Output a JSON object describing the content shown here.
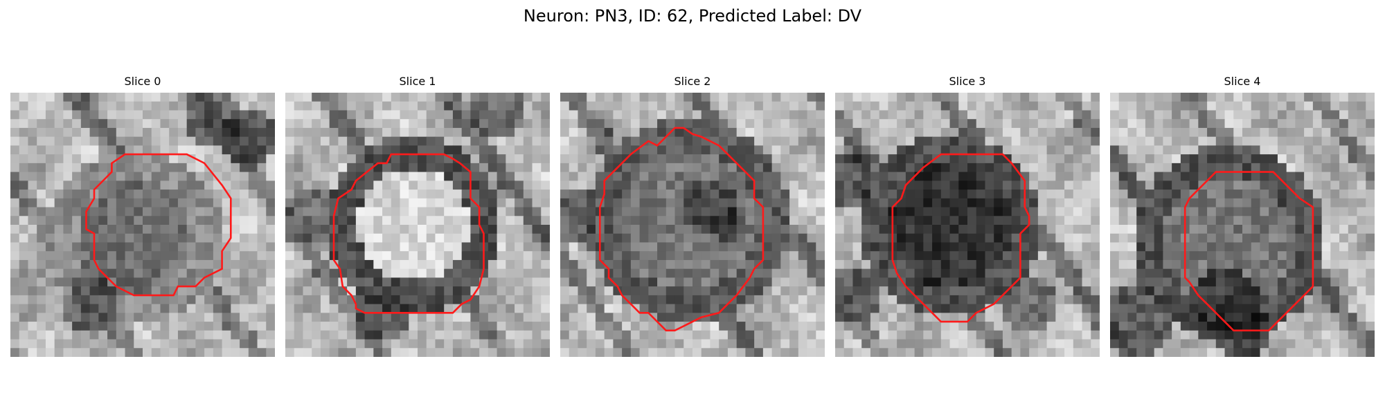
{
  "figure": {
    "title": "Neuron: PN3, ID: 62, Predicted Label: DV"
  },
  "slices": [
    {
      "title": "Slice 0"
    },
    {
      "title": "Slice 1"
    },
    {
      "title": "Slice 2"
    },
    {
      "title": "Slice 3"
    },
    {
      "title": "Slice 4"
    }
  ],
  "colors": {
    "contour": "#ff1a1a",
    "background": "#ffffff"
  }
}
